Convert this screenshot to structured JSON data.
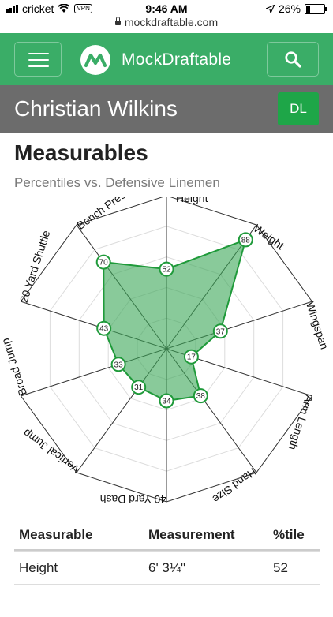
{
  "status": {
    "carrier": "cricket",
    "vpn": "VPN",
    "time": "9:46 AM",
    "battery": "26%",
    "battery_level": 0.26
  },
  "browser": {
    "url": "mockdraftable.com"
  },
  "navbar": {
    "brand": "MockDraftable"
  },
  "player": {
    "name": "Christian Wilkins",
    "position": "DL"
  },
  "section": {
    "title": "Measurables",
    "subtitle": "Percentiles vs. Defensive Linemen"
  },
  "chart_data": {
    "type": "radar",
    "range": [
      0,
      100
    ],
    "axes": [
      {
        "label": "Height",
        "value": 52
      },
      {
        "label": "Weight",
        "value": 88
      },
      {
        "label": "Wingspan",
        "value": 37
      },
      {
        "label": "Arm Length",
        "value": 17
      },
      {
        "label": "Hand Size",
        "value": 38
      },
      {
        "label": "40 Yard Dash",
        "value": 34
      },
      {
        "label": "Vertical Jump",
        "value": 31
      },
      {
        "label": "Broad Jump",
        "value": 33
      },
      {
        "label": "20 Yard Shuttle",
        "value": 43
      },
      {
        "label": "Bench Press",
        "value": 70
      }
    ],
    "fill_color": "#3aa657",
    "stroke_color": "#1f9a3a"
  },
  "table": {
    "headers": [
      "Measurable",
      "Measurement",
      "%tile"
    ],
    "rows": [
      {
        "measurable": "Height",
        "measurement": "6' 3¼\"",
        "percentile": "52"
      }
    ]
  }
}
